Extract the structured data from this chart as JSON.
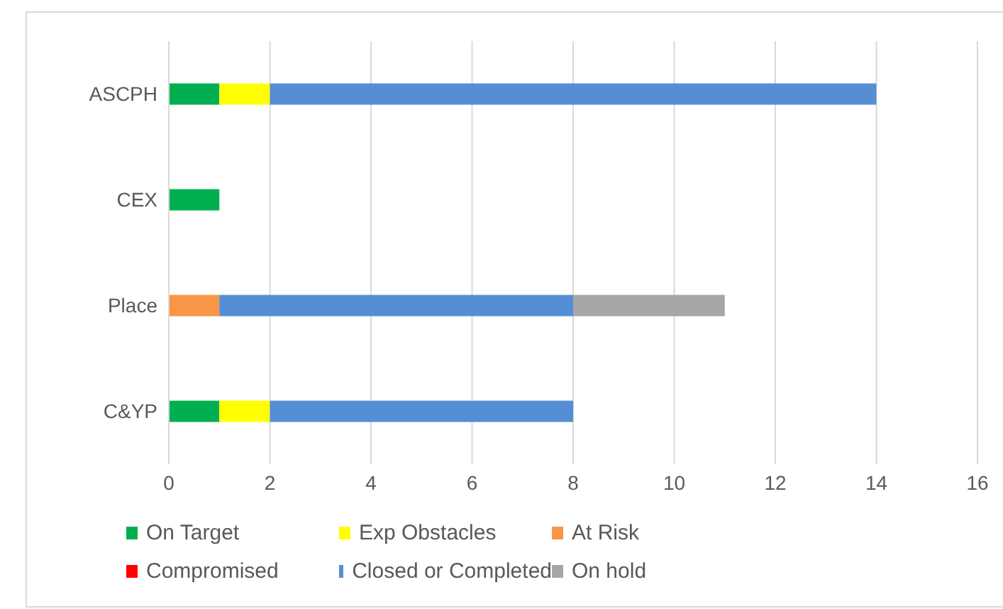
{
  "chart_data": {
    "type": "bar",
    "orientation": "horizontal",
    "stacked": true,
    "categories": [
      "ASCPH",
      "CEX",
      "Place",
      "C&YP"
    ],
    "series": [
      {
        "name": "On Target",
        "color": "#00b050",
        "values": [
          1,
          1,
          0,
          1
        ]
      },
      {
        "name": "Exp Obstacles",
        "color": "#ffff00",
        "values": [
          1,
          0,
          0,
          1
        ]
      },
      {
        "name": "At Risk",
        "color": "#f79646",
        "values": [
          0,
          0,
          1,
          0
        ]
      },
      {
        "name": "Compromised",
        "color": "#ff0000",
        "values": [
          0,
          0,
          0,
          0
        ]
      },
      {
        "name": "Closed or Completed",
        "color": "#558ed5",
        "values": [
          12,
          0,
          7,
          6
        ]
      },
      {
        "name": "On hold",
        "color": "#a6a6a6",
        "values": [
          0,
          0,
          3,
          0
        ]
      }
    ],
    "xlim": [
      0,
      16
    ],
    "xticks": [
      0,
      2,
      4,
      6,
      8,
      10,
      12,
      14,
      16
    ],
    "grid": "x",
    "legend": "bottom"
  }
}
